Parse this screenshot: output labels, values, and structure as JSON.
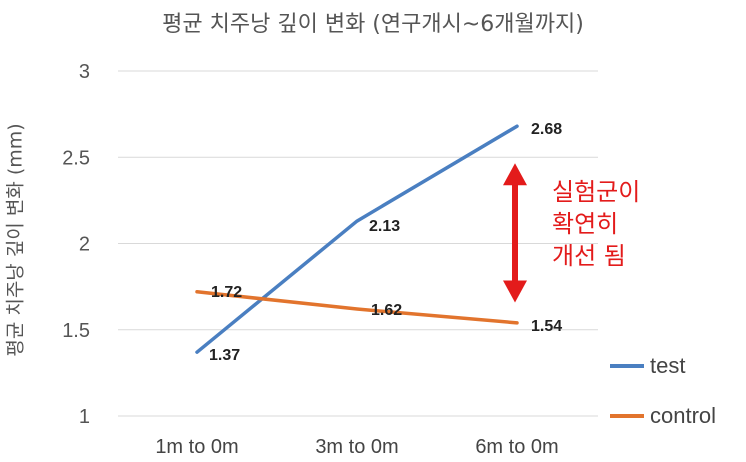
{
  "chart_data": {
    "type": "line",
    "title": "평균 치주낭 깊이 변화 (연구개시~6개월까지)",
    "ylabel": "평균 치주낭 깊이 변화 (mm)",
    "xlabel": "",
    "categories": [
      "1m to 0m",
      "3m to 0m",
      "6m to 0m"
    ],
    "ylim": [
      1,
      3
    ],
    "yticks": [
      "1",
      "1.5",
      "2",
      "2.5",
      "3"
    ],
    "grid": true,
    "legend_position": "right-bottom",
    "series": [
      {
        "name": "test",
        "values": [
          1.37,
          2.13,
          2.68
        ],
        "labels": [
          "1.37",
          "2.13",
          "2.68"
        ],
        "color": "#4a7fc1"
      },
      {
        "name": "control",
        "values": [
          1.72,
          1.62,
          1.54
        ],
        "labels": [
          "1.72",
          "1.62",
          "1.54"
        ],
        "color": "#e2742d"
      }
    ],
    "annotation": {
      "lines": [
        "실험군이",
        "확연히",
        "개선 됨"
      ],
      "color": "#e31b1b",
      "arrow_from": 2.5,
      "arrow_to": 1.6
    }
  }
}
